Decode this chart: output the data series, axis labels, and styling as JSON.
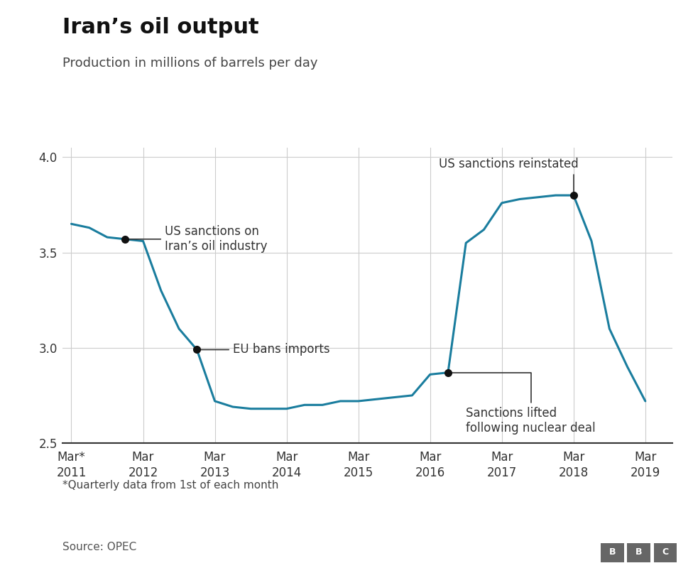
{
  "title": "Iran’s oil output",
  "subtitle": "Production in millions of barrels per day",
  "footnote": "*Quarterly data from 1st of each month",
  "source": "Source: OPEC",
  "line_color": "#1a7d9e",
  "background_color": "#ffffff",
  "grid_color": "#cccccc",
  "ylim": [
    2.5,
    4.05
  ],
  "yticks": [
    2.5,
    3.0,
    3.5,
    4.0
  ],
  "x_labels": [
    "Mar*\n2011",
    "Mar\n2012",
    "Mar\n2013",
    "Mar\n2014",
    "Mar\n2015",
    "Mar\n2016",
    "Mar\n2017",
    "Mar\n2018",
    "Mar\n2019"
  ],
  "x_positions": [
    0,
    4,
    8,
    12,
    16,
    20,
    24,
    28,
    32
  ],
  "data": [
    [
      0,
      3.65
    ],
    [
      1,
      3.63
    ],
    [
      2,
      3.58
    ],
    [
      3,
      3.57
    ],
    [
      4,
      3.56
    ],
    [
      5,
      3.3
    ],
    [
      6,
      3.1
    ],
    [
      7,
      2.99
    ],
    [
      8,
      2.72
    ],
    [
      9,
      2.69
    ],
    [
      10,
      2.68
    ],
    [
      11,
      2.68
    ],
    [
      12,
      2.68
    ],
    [
      13,
      2.7
    ],
    [
      14,
      2.7
    ],
    [
      15,
      2.72
    ],
    [
      16,
      2.72
    ],
    [
      17,
      2.73
    ],
    [
      18,
      2.74
    ],
    [
      19,
      2.75
    ],
    [
      20,
      2.86
    ],
    [
      21,
      2.87
    ],
    [
      22,
      3.55
    ],
    [
      23,
      3.62
    ],
    [
      24,
      3.76
    ],
    [
      25,
      3.78
    ],
    [
      26,
      3.79
    ],
    [
      27,
      3.8
    ],
    [
      28,
      3.8
    ],
    [
      29,
      3.56
    ],
    [
      30,
      3.1
    ],
    [
      31,
      2.9
    ],
    [
      32,
      2.72
    ]
  ],
  "ann_dot_color": "#111111",
  "ann_line_color": "#333333",
  "ann_text_color": "#333333"
}
